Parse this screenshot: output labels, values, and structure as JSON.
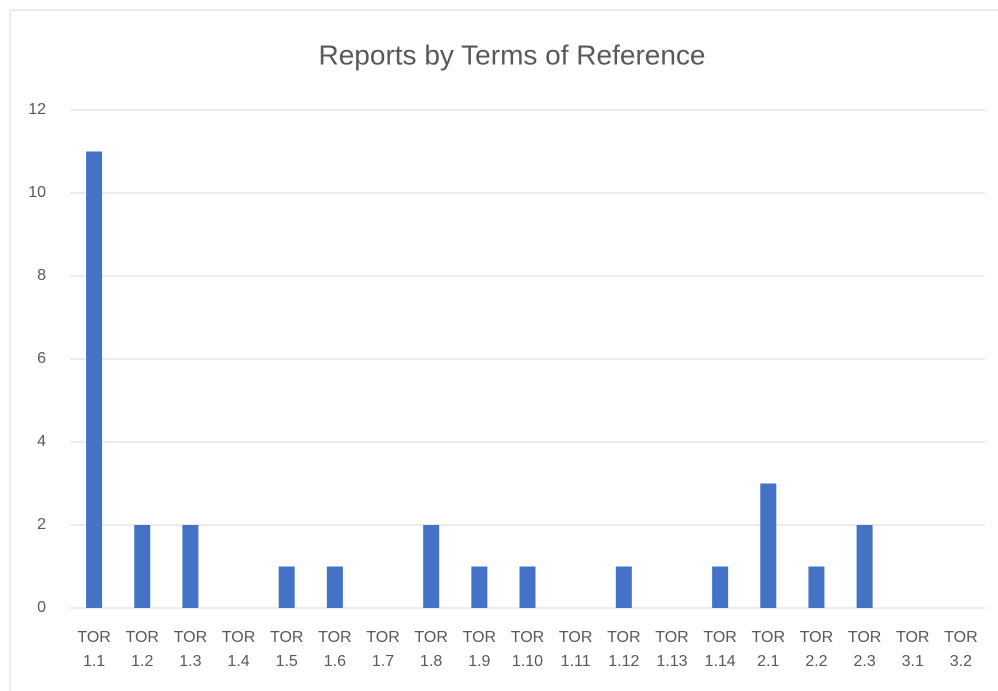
{
  "chart_data": {
    "type": "bar",
    "title": "Reports by Terms of Reference",
    "categories": [
      "TOR 1.1",
      "TOR 1.2",
      "TOR 1.3",
      "TOR 1.4",
      "TOR 1.5",
      "TOR 1.6",
      "TOR 1.7",
      "TOR 1.8",
      "TOR 1.9",
      "TOR 1.10",
      "TOR 1.11",
      "TOR 1.12",
      "TOR 1.13",
      "TOR 1.14",
      "TOR 2.1",
      "TOR 2.2",
      "TOR 2.3",
      "TOR 3.1",
      "TOR 3.2"
    ],
    "values": [
      11,
      2,
      2,
      0,
      1,
      1,
      0,
      2,
      1,
      1,
      0,
      1,
      0,
      1,
      3,
      1,
      2,
      0,
      0
    ],
    "color": "#4472c4",
    "ylim": [
      0,
      12
    ],
    "yticks": [
      0,
      2,
      4,
      6,
      8,
      10,
      12
    ],
    "grid": true
  }
}
